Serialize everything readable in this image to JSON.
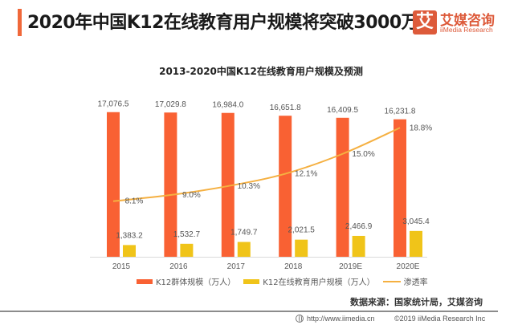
{
  "header": {
    "title": "2020年中国K12在线教育用户规模将突破3000万人",
    "logo_glyph": "艾",
    "logo_cn": "艾媒咨询",
    "logo_en": "iiMedia Research",
    "accent_color": "#f0683a"
  },
  "chart_data": {
    "type": "bar",
    "title": "2013-2020中国K12在线教育用户规模及预测",
    "xlabel": "",
    "ylabel": "",
    "categories": [
      "2015",
      "2016",
      "2017",
      "2018",
      "2019E",
      "2020E"
    ],
    "ylim": [
      0,
      18000
    ],
    "grid": false,
    "legend_position": "bottom",
    "series": [
      {
        "name": "K12群体规模（万人）",
        "kind": "bar",
        "color": "#f96133",
        "values": [
          17076.5,
          17029.8,
          16984.0,
          16651.8,
          16409.5,
          16231.8
        ],
        "labels": [
          "17,076.5",
          "17,029.8",
          "16,984.0",
          "16,651.8",
          "16,409.5",
          "16,231.8"
        ]
      },
      {
        "name": "K12在线教育用户规模（万人）",
        "kind": "bar",
        "color": "#f0c419",
        "values": [
          1383.2,
          1532.7,
          1749.7,
          2021.5,
          2466.9,
          3045.4
        ],
        "labels": [
          "1,383.2",
          "1,532.7",
          "1,749.7",
          "2,021.5",
          "2,466.9",
          "3,045.4"
        ]
      },
      {
        "name": "渗透率",
        "kind": "line",
        "color": "#f5b041",
        "axis": "secondary",
        "ylim": [
          0,
          40
        ],
        "values": [
          8.1,
          9.0,
          10.3,
          12.1,
          15.0,
          18.8
        ],
        "labels": [
          "8.1%",
          "9.0%",
          "10.3%",
          "12.1%",
          "15.0%",
          "18.8%"
        ]
      }
    ]
  },
  "footer": {
    "source": "数据来源：国家统计局，艾媒咨询",
    "url": "http://www.iimedia.cn",
    "copyright": "©2019  iiMedia Research  Inc"
  }
}
